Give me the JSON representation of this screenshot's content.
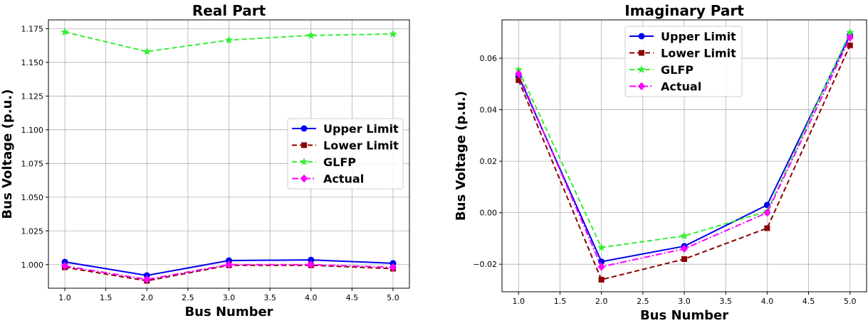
{
  "chart_data": [
    {
      "type": "line",
      "title": "Real Part",
      "xlabel": "Bus Number",
      "ylabel": "Bus Voltage (p.u.)",
      "x": [
        1.0,
        2.0,
        3.0,
        4.0,
        5.0
      ],
      "xlim": [
        0.8,
        5.2
      ],
      "ylim": [
        0.9825,
        1.1815
      ],
      "xticks": [
        "1.0",
        "1.5",
        "2.0",
        "2.5",
        "3.0",
        "3.5",
        "4.0",
        "4.5",
        "5.0"
      ],
      "yticks": [
        "1.000",
        "1.025",
        "1.050",
        "1.075",
        "1.100",
        "1.125",
        "1.150",
        "1.175"
      ],
      "grid": true,
      "legend_position": "center-right",
      "series": [
        {
          "name": "Upper Limit",
          "color": "#0000ee",
          "style": "solid",
          "marker": "circle",
          "values": [
            1.002,
            0.992,
            1.003,
            1.0035,
            1.001
          ]
        },
        {
          "name": "Lower Limit",
          "color": "#8b0000",
          "style": "dashed",
          "marker": "square",
          "values": [
            0.998,
            0.988,
            0.9995,
            0.9995,
            0.997
          ]
        },
        {
          "name": "GLFP",
          "color": "#33ee33",
          "style": "dashed",
          "marker": "star",
          "values": [
            1.1725,
            1.158,
            1.1665,
            1.17,
            1.171
          ]
        },
        {
          "name": "Actual",
          "color": "#ff00ff",
          "style": "dashdot",
          "marker": "diamond",
          "values": [
            0.999,
            0.989,
            1.0,
            1.0,
            0.998
          ]
        }
      ]
    },
    {
      "type": "line",
      "title": "Imaginary Part",
      "xlabel": "Bus Number",
      "ylabel": "Bus Voltage (p.u.)",
      "x": [
        1.0,
        2.0,
        3.0,
        4.0,
        5.0
      ],
      "xlim": [
        0.8,
        5.2
      ],
      "ylim": [
        -0.0307,
        0.0749
      ],
      "xticks": [
        "1.0",
        "1.5",
        "2.0",
        "2.5",
        "3.0",
        "3.5",
        "4.0",
        "4.5",
        "5.0"
      ],
      "yticks": [
        "−0.02",
        "0.00",
        "0.02",
        "0.04",
        "0.06"
      ],
      "grid": true,
      "legend_position": "top-center",
      "series": [
        {
          "name": "Upper Limit",
          "color": "#0000ee",
          "style": "solid",
          "marker": "circle",
          "values": [
            0.053,
            -0.019,
            -0.013,
            0.003,
            0.069
          ]
        },
        {
          "name": "Lower Limit",
          "color": "#8b0000",
          "style": "dashed",
          "marker": "square",
          "values": [
            0.0515,
            -0.026,
            -0.018,
            -0.006,
            0.065
          ]
        },
        {
          "name": "GLFP",
          "color": "#33ee33",
          "style": "dashed",
          "marker": "star",
          "values": [
            0.0555,
            -0.0135,
            -0.009,
            0.0005,
            0.07
          ]
        },
        {
          "name": "Actual",
          "color": "#ff00ff",
          "style": "dashdot",
          "marker": "diamond",
          "values": [
            0.054,
            -0.021,
            -0.014,
            0.0,
            0.068
          ]
        }
      ]
    }
  ]
}
